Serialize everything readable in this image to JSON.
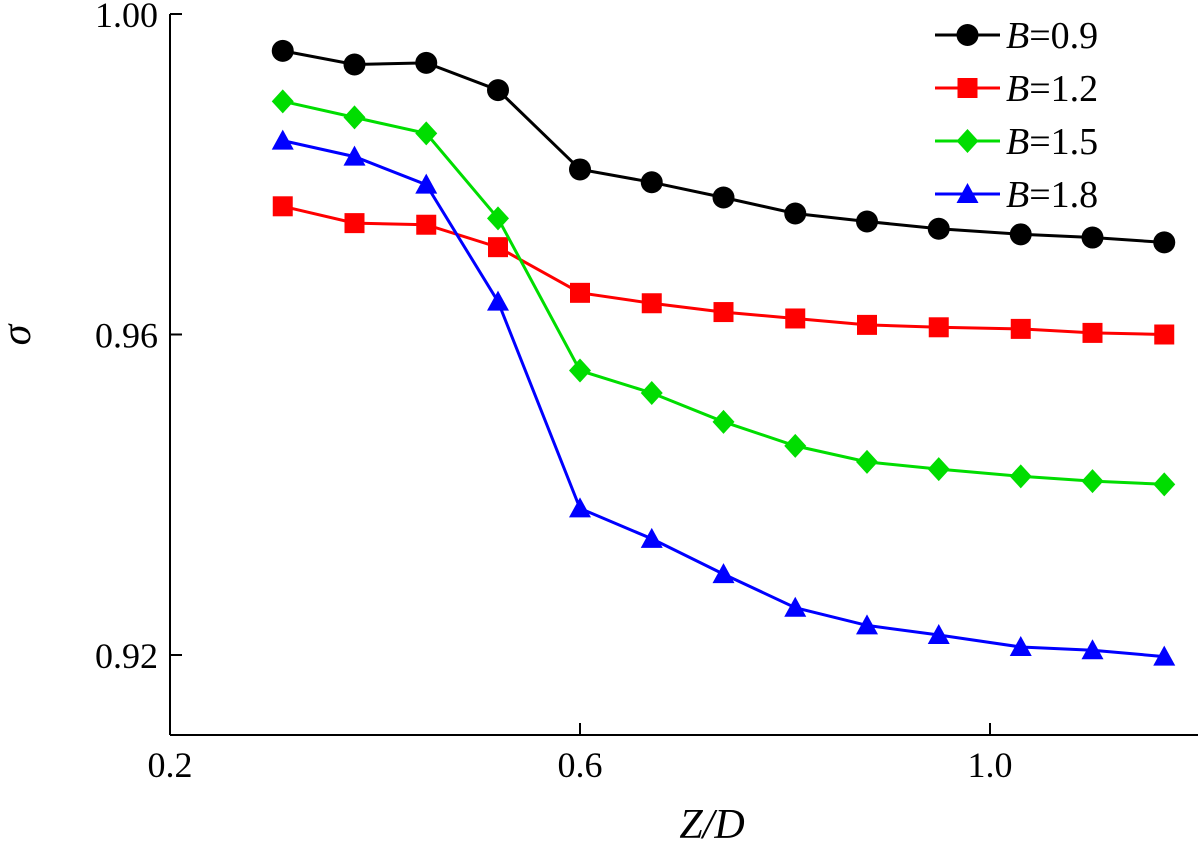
{
  "chart_data": {
    "type": "line",
    "title": "",
    "xlabel": "Z/D",
    "ylabel": "σ",
    "xlim": [
      0.2,
      1.2
    ],
    "ylim": [
      0.91,
      1.0
    ],
    "xticks": [
      0.2,
      0.6,
      1.0
    ],
    "xtick_labels": [
      "0.2",
      "0.6",
      "1.0"
    ],
    "yticks": [
      0.92,
      0.96,
      1.0
    ],
    "ytick_labels": [
      "0.92",
      "0.96",
      "1.00"
    ],
    "grid": false,
    "legend_position": "top-right",
    "series": [
      {
        "name_prefix": "B",
        "name_suffix": "=0.9",
        "color": "#000000",
        "marker": "circle",
        "x": [
          0.31,
          0.38,
          0.45,
          0.52,
          0.6,
          0.67,
          0.74,
          0.81,
          0.88,
          0.95,
          1.03,
          1.1,
          1.17
        ],
        "y": [
          0.9954,
          0.9937,
          0.9939,
          0.9905,
          0.9806,
          0.979,
          0.9771,
          0.9751,
          0.9741,
          0.9732,
          0.9725,
          0.9721,
          0.9715
        ]
      },
      {
        "name_prefix": "B",
        "name_suffix": "=1.2",
        "color": "#ff0000",
        "marker": "square",
        "x": [
          0.31,
          0.38,
          0.45,
          0.52,
          0.6,
          0.67,
          0.74,
          0.81,
          0.88,
          0.95,
          1.03,
          1.1,
          1.17
        ],
        "y": [
          0.976,
          0.9739,
          0.9737,
          0.9709,
          0.9652,
          0.9639,
          0.9628,
          0.962,
          0.9612,
          0.9609,
          0.9607,
          0.9602,
          0.96
        ]
      },
      {
        "name_prefix": "B",
        "name_suffix": "=1.5",
        "color": "#00dd00",
        "marker": "diamond",
        "x": [
          0.31,
          0.38,
          0.45,
          0.52,
          0.6,
          0.67,
          0.74,
          0.81,
          0.88,
          0.95,
          1.03,
          1.1,
          1.17
        ],
        "y": [
          0.9891,
          0.9871,
          0.9851,
          0.9745,
          0.9555,
          0.9527,
          0.9491,
          0.9461,
          0.9441,
          0.9432,
          0.9423,
          0.9417,
          0.9413
        ]
      },
      {
        "name_prefix": "B",
        "name_suffix": "=1.8",
        "color": "#0000ff",
        "marker": "triangle",
        "x": [
          0.31,
          0.38,
          0.45,
          0.52,
          0.6,
          0.67,
          0.74,
          0.81,
          0.88,
          0.95,
          1.03,
          1.1,
          1.17
        ],
        "y": [
          0.9842,
          0.9822,
          0.9787,
          0.9641,
          0.9383,
          0.9345,
          0.9301,
          0.9259,
          0.9237,
          0.9225,
          0.921,
          0.9206,
          0.9198
        ]
      }
    ]
  }
}
